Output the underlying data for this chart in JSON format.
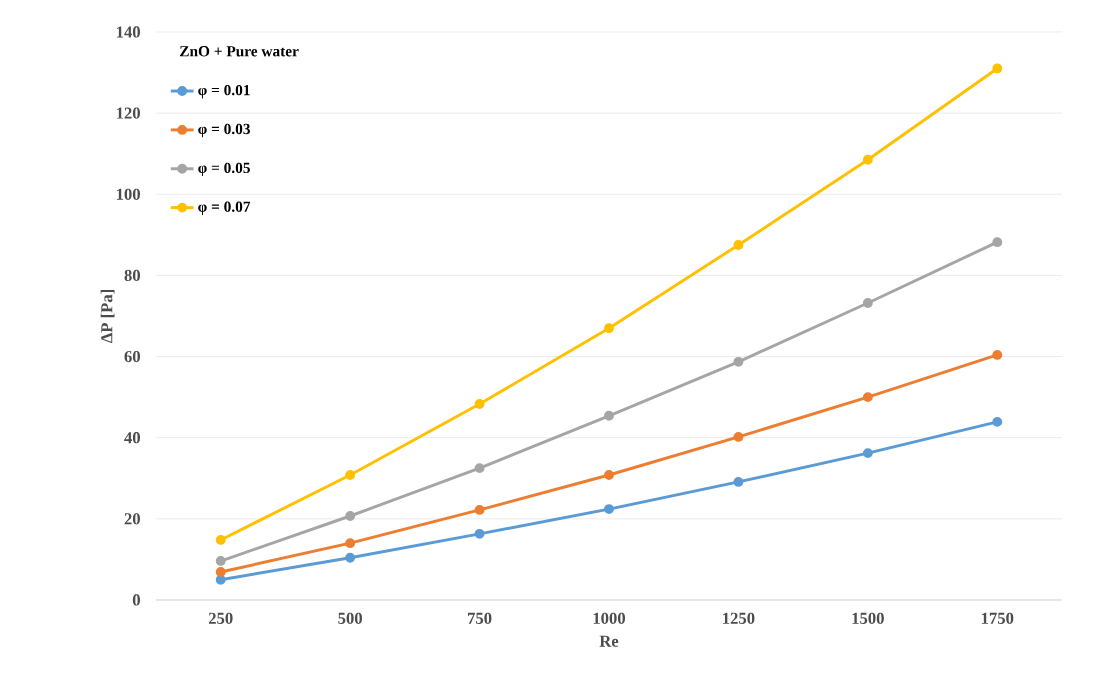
{
  "chart_data": {
    "type": "line",
    "xlabel": "Re",
    "ylabel": "ΔP [Pa]",
    "legend_title": "ZnO + Pure water",
    "categories": [
      "250",
      "500",
      "750",
      "1000",
      "1250",
      "1500",
      "1750"
    ],
    "series": [
      {
        "name": "φ = 0.01",
        "color": "#5b9bd5",
        "values": [
          5,
          10.4,
          16.3,
          22.4,
          29.1,
          36.2,
          43.9
        ]
      },
      {
        "name": "φ = 0.03",
        "color": "#ed7d31",
        "values": [
          6.9,
          14,
          22.2,
          30.8,
          40.2,
          50,
          60.4
        ]
      },
      {
        "name": "φ = 0.05",
        "color": "#a5a5a5",
        "values": [
          9.6,
          20.7,
          32.5,
          45.4,
          58.7,
          73.2,
          88.2
        ]
      },
      {
        "name": "φ = 0.07",
        "color": "#ffc000",
        "values": [
          14.8,
          30.8,
          48.3,
          67,
          87.5,
          108.5,
          131
        ]
      }
    ],
    "ylim": [
      0,
      140
    ],
    "yticks": [
      0,
      20,
      40,
      60,
      80,
      100,
      120,
      140
    ],
    "grid": "y",
    "legend": "top left",
    "marker": "circle",
    "line_style": "solid"
  }
}
